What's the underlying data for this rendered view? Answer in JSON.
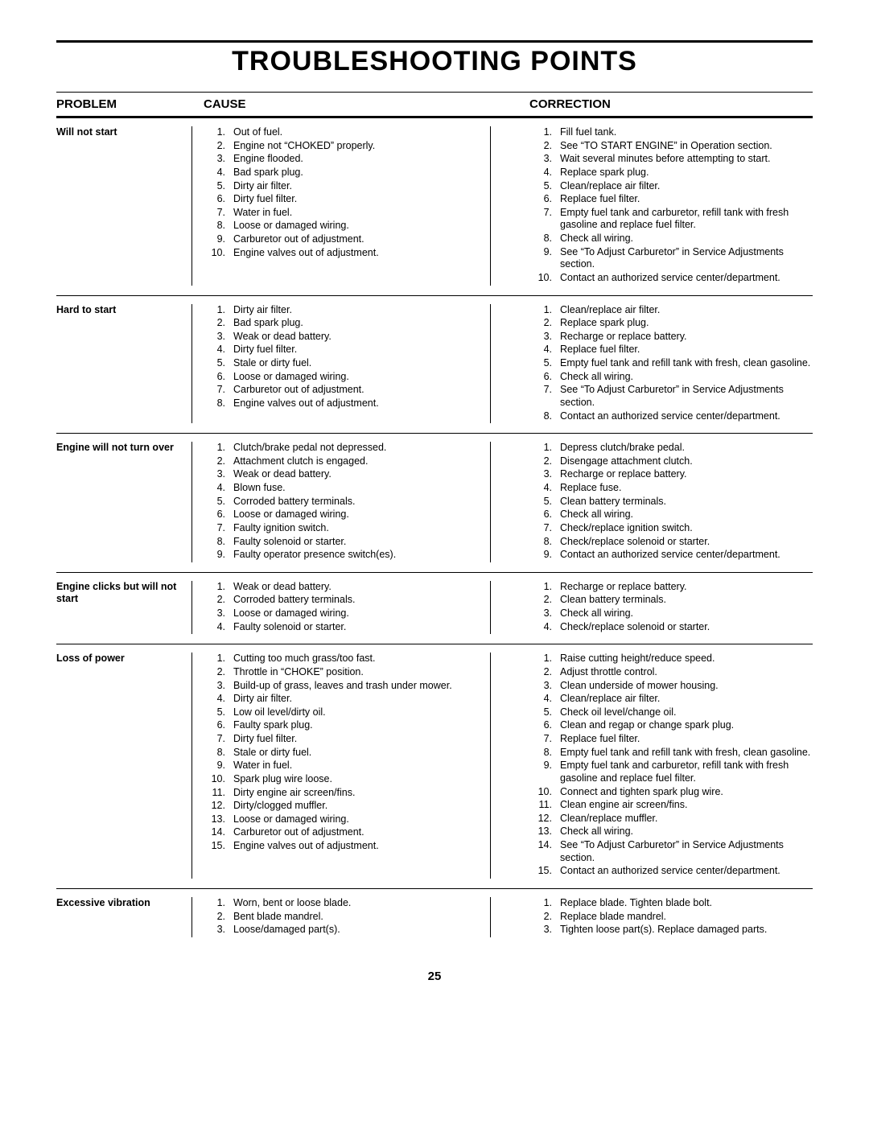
{
  "title": "TROUBLESHOOTING POINTS",
  "columns": {
    "problem": "PROBLEM",
    "cause": "CAUSE",
    "correction": "CORRECTION"
  },
  "page_number": "25",
  "rows": [
    {
      "problem": "Will not start",
      "causes": [
        "Out of fuel.",
        "Engine not “CHOKED” properly.",
        "Engine flooded.",
        "Bad spark plug.",
        "Dirty air filter.",
        "Dirty fuel filter.",
        "Water in fuel.",
        "Loose or damaged wiring.",
        "Carburetor out of adjustment.",
        "Engine valves out of adjustment."
      ],
      "corrections": [
        "Fill fuel tank.",
        "See “TO START ENGINE” in Operation section.",
        "Wait several minutes before attempting to start.",
        "Replace spark plug.",
        "Clean/replace air filter.",
        "Replace fuel filter.",
        "Empty fuel tank and carburetor, refill tank with fresh gasoline and replace fuel filter.",
        "Check all wiring.",
        "See “To Adjust Carburetor” in Service Adjustments section.",
        "Contact an authorized service center/department."
      ]
    },
    {
      "problem": "Hard to start",
      "causes": [
        "Dirty air filter.",
        "Bad spark plug.",
        "Weak or dead battery.",
        "Dirty fuel filter.",
        "Stale or dirty fuel.",
        "Loose or damaged wiring.",
        "Carburetor out of adjustment.",
        "Engine valves out of adjustment."
      ],
      "corrections": [
        "Clean/replace air filter.",
        "Replace spark plug.",
        "Recharge or replace battery.",
        "Replace fuel filter.",
        "Empty fuel tank and refill tank with fresh, clean gasoline.",
        "Check all wiring.",
        "See “To Adjust Carburetor” in Service Adjustments section.",
        "Contact an authorized service center/department."
      ]
    },
    {
      "problem": "Engine will not turn over",
      "causes": [
        "Clutch/brake pedal not depressed.",
        "Attachment clutch is engaged.",
        "Weak or dead battery.",
        "Blown fuse.",
        "Corroded battery terminals.",
        "Loose or damaged wiring.",
        "Faulty ignition switch.",
        "Faulty solenoid or starter.",
        "Faulty operator presence switch(es)."
      ],
      "corrections": [
        "Depress clutch/brake pedal.",
        "Disengage attachment clutch.",
        "Recharge or replace battery.",
        "Replace fuse.",
        "Clean battery terminals.",
        "Check all wiring.",
        "Check/replace ignition switch.",
        "Check/replace solenoid or starter.",
        "Contact an authorized service center/department."
      ]
    },
    {
      "problem": "Engine clicks but will not start",
      "causes": [
        "Weak or dead battery.",
        "Corroded battery terminals.",
        "Loose or damaged wiring.",
        "Faulty solenoid or starter."
      ],
      "corrections": [
        "Recharge or replace battery.",
        "Clean battery terminals.",
        "Check all wiring.",
        "Check/replace solenoid or starter."
      ]
    },
    {
      "problem": "Loss of power",
      "causes": [
        "Cutting too much grass/too fast.",
        "Throttle in “CHOKE” position.",
        "Build-up of grass, leaves and trash under mower.",
        "Dirty air filter.",
        "Low oil level/dirty oil.",
        "Faulty spark plug.",
        "Dirty fuel filter.",
        "Stale or dirty fuel.",
        "Water in fuel.",
        "Spark plug wire loose.",
        "Dirty engine air screen/fins.",
        "Dirty/clogged muffler.",
        "Loose or damaged wiring.",
        "Carburetor out of adjustment.",
        "Engine valves out of adjustment."
      ],
      "corrections": [
        "Raise cutting height/reduce speed.",
        "Adjust throttle control.",
        "Clean underside of mower housing.",
        "Clean/replace air filter.",
        "Check oil level/change oil.",
        "Clean and regap or change spark plug.",
        "Replace fuel filter.",
        "Empty fuel tank and refill tank with fresh, clean gasoline.",
        "Empty fuel tank and carburetor, refill tank with fresh gasoline and replace fuel filter.",
        "Connect and tighten spark plug wire.",
        "Clean engine air screen/fins.",
        "Clean/replace muffler.",
        "Check all wiring.",
        "See “To Adjust Carburetor” in Service Adjustments section.",
        "Contact an authorized service center/department."
      ]
    },
    {
      "problem": "Excessive vibration",
      "causes": [
        "Worn, bent or loose blade.",
        "Bent blade mandrel.",
        "Loose/damaged part(s)."
      ],
      "corrections": [
        "Replace blade.  Tighten blade bolt.",
        "Replace blade mandrel.",
        "Tighten loose part(s).  Replace damaged parts."
      ]
    }
  ]
}
